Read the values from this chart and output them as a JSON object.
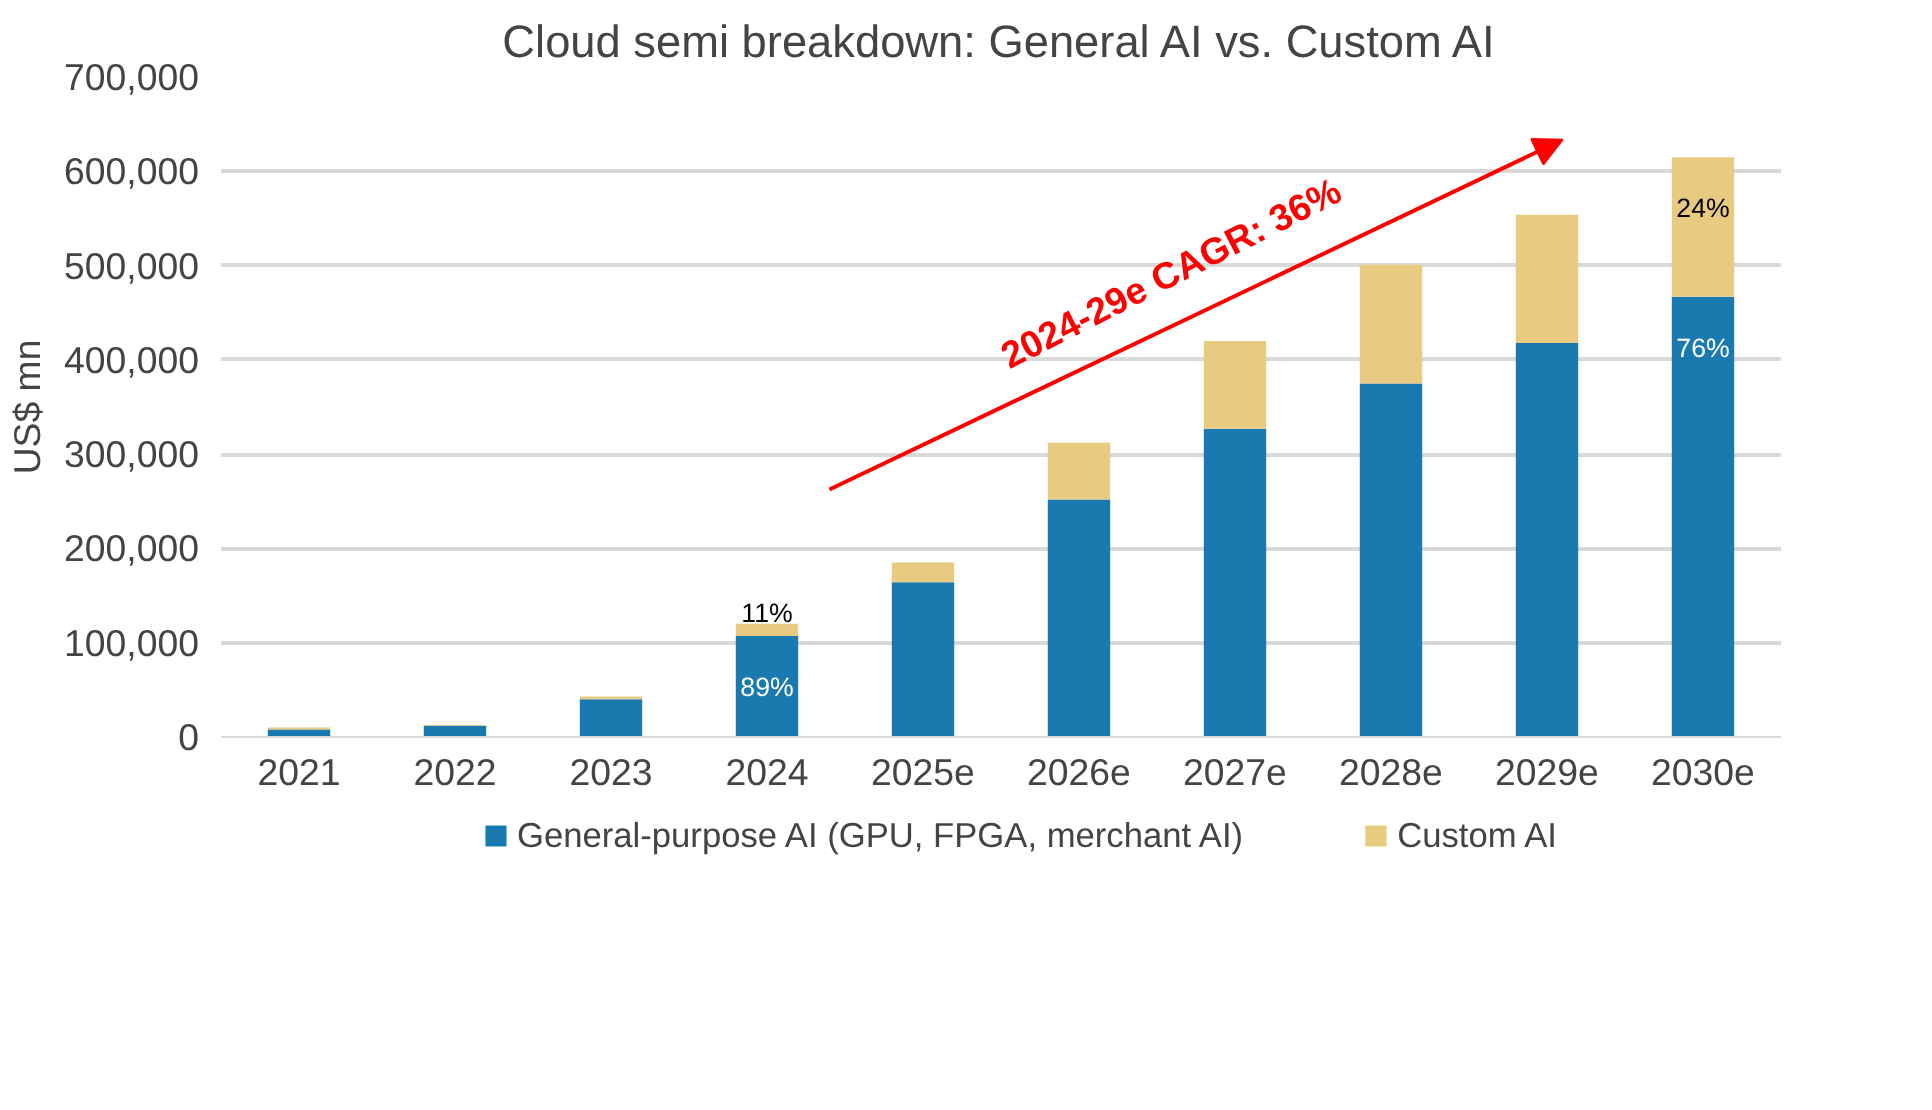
{
  "chart_data": {
    "type": "bar",
    "title": "Cloud semi breakdown: General AI vs. Custom AI",
    "ylabel": "US$ mn",
    "categories": [
      "2021",
      "2022",
      "2023",
      "2024",
      "2025e",
      "2026e",
      "2027e",
      "2028e",
      "2029e",
      "2030e"
    ],
    "stacked": true,
    "series": [
      {
        "name": "General-purpose AI (GPU, FPGA, merchant AI)",
        "color": "#1a7ab0",
        "values": [
          8000,
          12000,
          40000,
          107000,
          164000,
          252000,
          327000,
          375000,
          418000,
          467000
        ]
      },
      {
        "name": "Custom AI",
        "color": "#e8ca81",
        "values": [
          2000,
          1000,
          3000,
          13000,
          21000,
          60000,
          93000,
          126000,
          136000,
          148000
        ]
      }
    ],
    "ylim": [
      0,
      700000
    ],
    "yticks": [
      {
        "value": 0,
        "label": "0"
      },
      {
        "value": 100000,
        "label": "100,000"
      },
      {
        "value": 200000,
        "label": "200,000"
      },
      {
        "value": 300000,
        "label": "300,000"
      },
      {
        "value": 400000,
        "label": "400,000"
      },
      {
        "value": 500000,
        "label": "500,000"
      },
      {
        "value": 600000,
        "label": "600,000"
      },
      {
        "value": 700000,
        "label": "700,000"
      }
    ],
    "grid": "y",
    "legend": "bottom",
    "annotations": [
      "2024-29e CAGR: 36%",
      {
        "text": "89%",
        "x": "2024",
        "y": 107000
      },
      {
        "text": "11%",
        "x": "2024",
        "y": 120000
      },
      {
        "text": "76%",
        "x": "2030e",
        "y": 467000
      },
      {
        "text": "24%",
        "x": "2030e",
        "y": 615000
      }
    ]
  }
}
